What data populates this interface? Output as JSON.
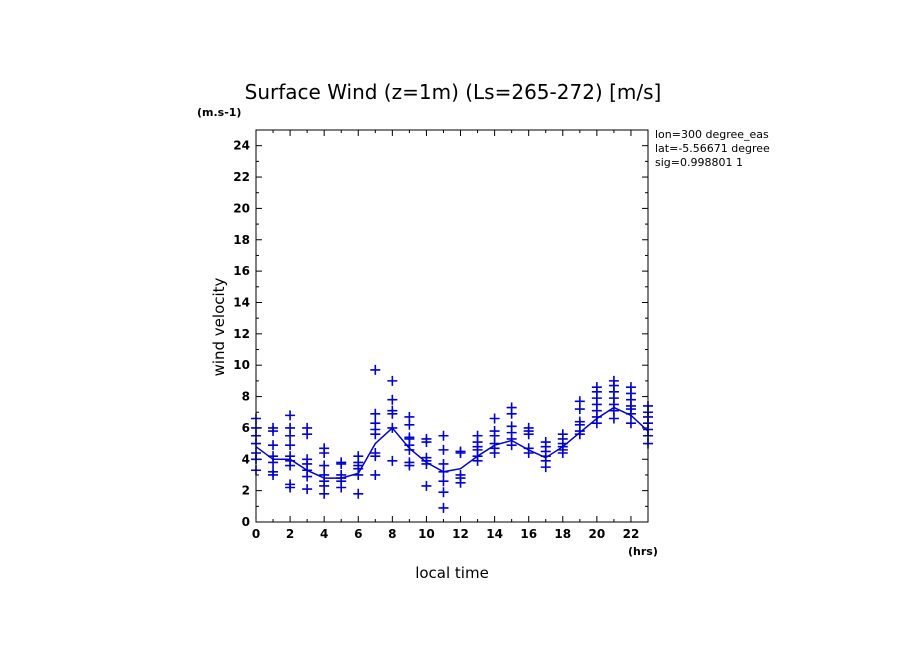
{
  "chart_data": {
    "type": "scatter",
    "title": "Surface Wind (z=1m) (Ls=265-272) [m/s]",
    "xlabel": "local time",
    "ylabel": "wind velocity",
    "xunit": "(hrs)",
    "yunit": "(m.s-1)",
    "xlim": [
      0,
      23
    ],
    "ylim": [
      0,
      25
    ],
    "xticks": [
      0,
      2,
      4,
      6,
      8,
      10,
      12,
      14,
      16,
      18,
      20,
      22
    ],
    "yticks": [
      0,
      2,
      4,
      6,
      8,
      10,
      12,
      14,
      16,
      18,
      20,
      22,
      24
    ],
    "grid": false,
    "annotations": [
      "lon=300 degree_eas",
      "lat=-5.56671 degree",
      "sig=0.998801 1"
    ],
    "color": "#0000cc",
    "series": [
      {
        "style": "line",
        "x": [
          0,
          1,
          2,
          3,
          4,
          5,
          6,
          7,
          8,
          9,
          10,
          11,
          12,
          13,
          14,
          15,
          16,
          17,
          18,
          19,
          20,
          21,
          22,
          23
        ],
        "y": [
          4.8,
          4.0,
          4.0,
          3.3,
          2.8,
          2.8,
          3.1,
          5.0,
          6.0,
          4.7,
          3.8,
          3.2,
          3.4,
          4.2,
          4.9,
          5.2,
          4.6,
          4.1,
          4.8,
          5.7,
          6.6,
          7.3,
          6.8,
          5.8
        ]
      },
      {
        "style": "markers",
        "marker": "+",
        "points": [
          [
            0,
            6.6
          ],
          [
            0,
            6.0
          ],
          [
            0,
            5.5
          ],
          [
            0,
            5.0
          ],
          [
            0,
            4.4
          ],
          [
            0,
            4.0
          ],
          [
            0,
            3.3
          ],
          [
            1,
            6.0
          ],
          [
            1,
            5.8
          ],
          [
            1,
            4.9
          ],
          [
            1,
            4.2
          ],
          [
            1,
            3.8
          ],
          [
            1,
            3.2
          ],
          [
            1,
            3.0
          ],
          [
            2,
            6.8
          ],
          [
            2,
            6.0
          ],
          [
            2,
            5.5
          ],
          [
            2,
            4.9
          ],
          [
            2,
            4.2
          ],
          [
            2,
            3.9
          ],
          [
            2,
            3.6
          ],
          [
            2,
            2.4
          ],
          [
            2,
            2.2
          ],
          [
            3,
            6.0
          ],
          [
            3,
            5.6
          ],
          [
            3,
            4.0
          ],
          [
            3,
            3.7
          ],
          [
            3,
            3.3
          ],
          [
            3,
            2.9
          ],
          [
            3,
            2.1
          ],
          [
            4,
            4.7
          ],
          [
            4,
            4.4
          ],
          [
            4,
            3.6
          ],
          [
            4,
            3.0
          ],
          [
            4,
            2.6
          ],
          [
            4,
            2.3
          ],
          [
            4,
            1.8
          ],
          [
            5,
            3.8
          ],
          [
            5,
            3.7
          ],
          [
            5,
            3.0
          ],
          [
            5,
            2.8
          ],
          [
            5,
            2.6
          ],
          [
            5,
            2.2
          ],
          [
            6,
            4.2
          ],
          [
            6,
            3.8
          ],
          [
            6,
            3.6
          ],
          [
            6,
            3.4
          ],
          [
            6,
            3.0
          ],
          [
            6,
            1.8
          ],
          [
            7,
            9.7
          ],
          [
            7,
            6.9
          ],
          [
            7,
            6.3
          ],
          [
            7,
            5.9
          ],
          [
            7,
            5.6
          ],
          [
            7,
            4.4
          ],
          [
            7,
            4.2
          ],
          [
            7,
            3.0
          ],
          [
            8,
            9.0
          ],
          [
            8,
            7.8
          ],
          [
            8,
            7.1
          ],
          [
            8,
            6.9
          ],
          [
            8,
            6.0
          ],
          [
            8,
            3.9
          ],
          [
            9,
            6.7
          ],
          [
            9,
            6.2
          ],
          [
            9,
            5.4
          ],
          [
            9,
            5.3
          ],
          [
            9,
            4.9
          ],
          [
            9,
            4.6
          ],
          [
            9,
            3.8
          ],
          [
            9,
            3.6
          ],
          [
            10,
            5.3
          ],
          [
            10,
            5.1
          ],
          [
            10,
            4.1
          ],
          [
            10,
            3.9
          ],
          [
            10,
            3.7
          ],
          [
            10,
            2.3
          ],
          [
            11,
            5.5
          ],
          [
            11,
            4.6
          ],
          [
            11,
            3.7
          ],
          [
            11,
            3.2
          ],
          [
            11,
            2.6
          ],
          [
            11,
            1.9
          ],
          [
            11,
            0.9
          ],
          [
            12,
            4.5
          ],
          [
            12,
            4.4
          ],
          [
            12,
            3.0
          ],
          [
            12,
            2.8
          ],
          [
            12,
            2.5
          ],
          [
            13,
            5.5
          ],
          [
            13,
            5.1
          ],
          [
            13,
            4.8
          ],
          [
            13,
            4.6
          ],
          [
            13,
            4.2
          ],
          [
            13,
            3.9
          ],
          [
            14,
            6.6
          ],
          [
            14,
            5.8
          ],
          [
            14,
            5.5
          ],
          [
            14,
            5.0
          ],
          [
            14,
            4.7
          ],
          [
            14,
            4.4
          ],
          [
            15,
            7.3
          ],
          [
            15,
            6.9
          ],
          [
            15,
            6.1
          ],
          [
            15,
            5.7
          ],
          [
            15,
            5.3
          ],
          [
            15,
            4.9
          ],
          [
            16,
            6.0
          ],
          [
            16,
            5.8
          ],
          [
            16,
            5.6
          ],
          [
            16,
            4.7
          ],
          [
            16,
            4.4
          ],
          [
            17,
            5.1
          ],
          [
            17,
            4.8
          ],
          [
            17,
            4.5
          ],
          [
            17,
            4.2
          ],
          [
            17,
            3.9
          ],
          [
            17,
            3.5
          ],
          [
            18,
            5.6
          ],
          [
            18,
            5.3
          ],
          [
            18,
            5.0
          ],
          [
            18,
            4.8
          ],
          [
            18,
            4.6
          ],
          [
            18,
            4.4
          ],
          [
            19,
            7.7
          ],
          [
            19,
            7.2
          ],
          [
            19,
            6.4
          ],
          [
            19,
            6.2
          ],
          [
            19,
            5.8
          ],
          [
            19,
            5.6
          ],
          [
            20,
            8.6
          ],
          [
            20,
            8.3
          ],
          [
            20,
            7.9
          ],
          [
            20,
            7.5
          ],
          [
            20,
            7.1
          ],
          [
            20,
            6.7
          ],
          [
            20,
            6.3
          ],
          [
            21,
            9.0
          ],
          [
            21,
            8.7
          ],
          [
            21,
            8.3
          ],
          [
            21,
            7.9
          ],
          [
            21,
            7.5
          ],
          [
            21,
            7.1
          ],
          [
            21,
            6.6
          ],
          [
            22,
            8.6
          ],
          [
            22,
            8.2
          ],
          [
            22,
            7.8
          ],
          [
            22,
            7.4
          ],
          [
            22,
            7.2
          ],
          [
            22,
            6.9
          ],
          [
            22,
            6.3
          ],
          [
            23,
            7.4
          ],
          [
            23,
            7.0
          ],
          [
            23,
            6.7
          ],
          [
            23,
            6.3
          ],
          [
            23,
            5.9
          ],
          [
            23,
            5.5
          ],
          [
            23,
            5.0
          ]
        ]
      }
    ]
  }
}
